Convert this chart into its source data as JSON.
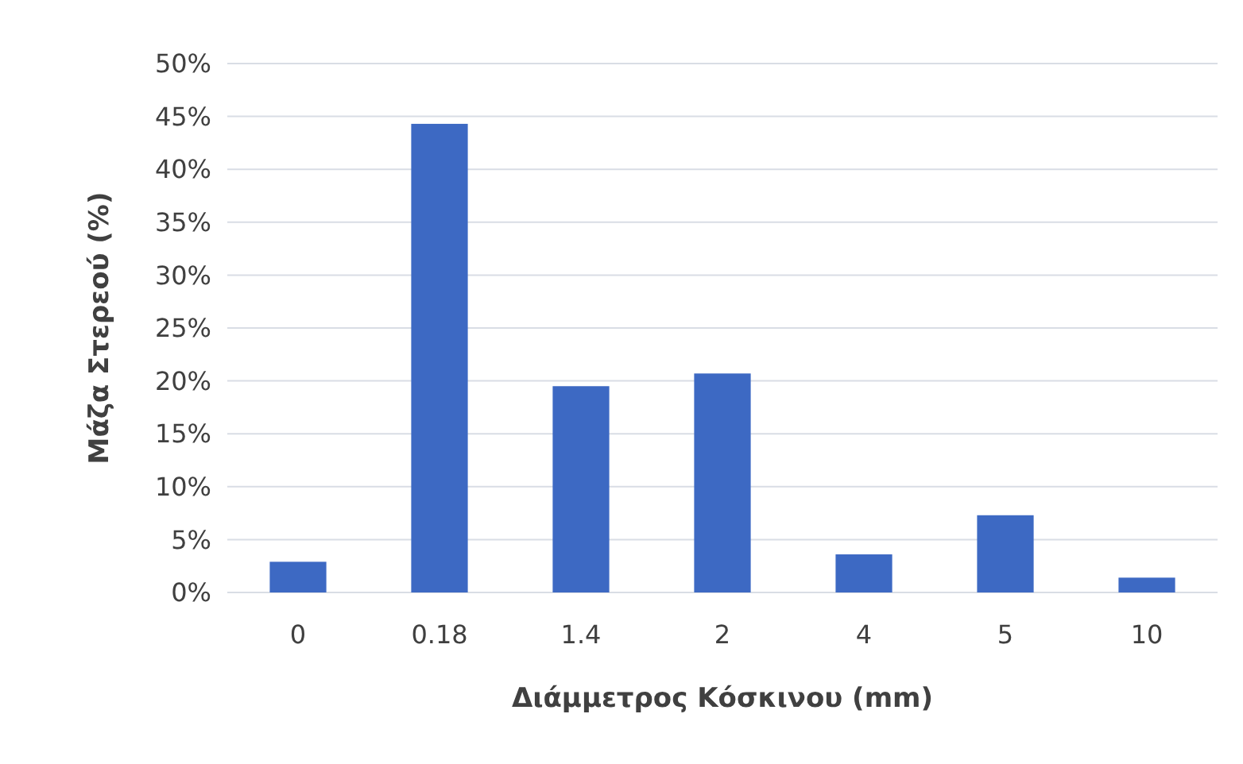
{
  "chart_data": {
    "type": "bar",
    "xlabel": "Διάμμετρος Κόσκινου (mm)",
    "ylabel": "Μάζα Στερεού (%)",
    "categories": [
      "0",
      "0.18",
      "1.4",
      "2",
      "4",
      "5",
      "10"
    ],
    "values": [
      2.9,
      44.3,
      19.5,
      20.7,
      3.6,
      7.3,
      1.4
    ],
    "color": "#3d69c3",
    "ylim": [
      0,
      50
    ],
    "yticks": [
      {
        "value": 0,
        "label": "0%"
      },
      {
        "value": 5,
        "label": "5%"
      },
      {
        "value": 10,
        "label": "10%"
      },
      {
        "value": 15,
        "label": "15%"
      },
      {
        "value": 20,
        "label": "20%"
      },
      {
        "value": 25,
        "label": "25%"
      },
      {
        "value": 30,
        "label": "30%"
      },
      {
        "value": 35,
        "label": "35%"
      },
      {
        "value": 40,
        "label": "40%"
      },
      {
        "value": 45,
        "label": "45%"
      },
      {
        "value": 50,
        "label": "50%"
      }
    ],
    "grid": "y"
  }
}
